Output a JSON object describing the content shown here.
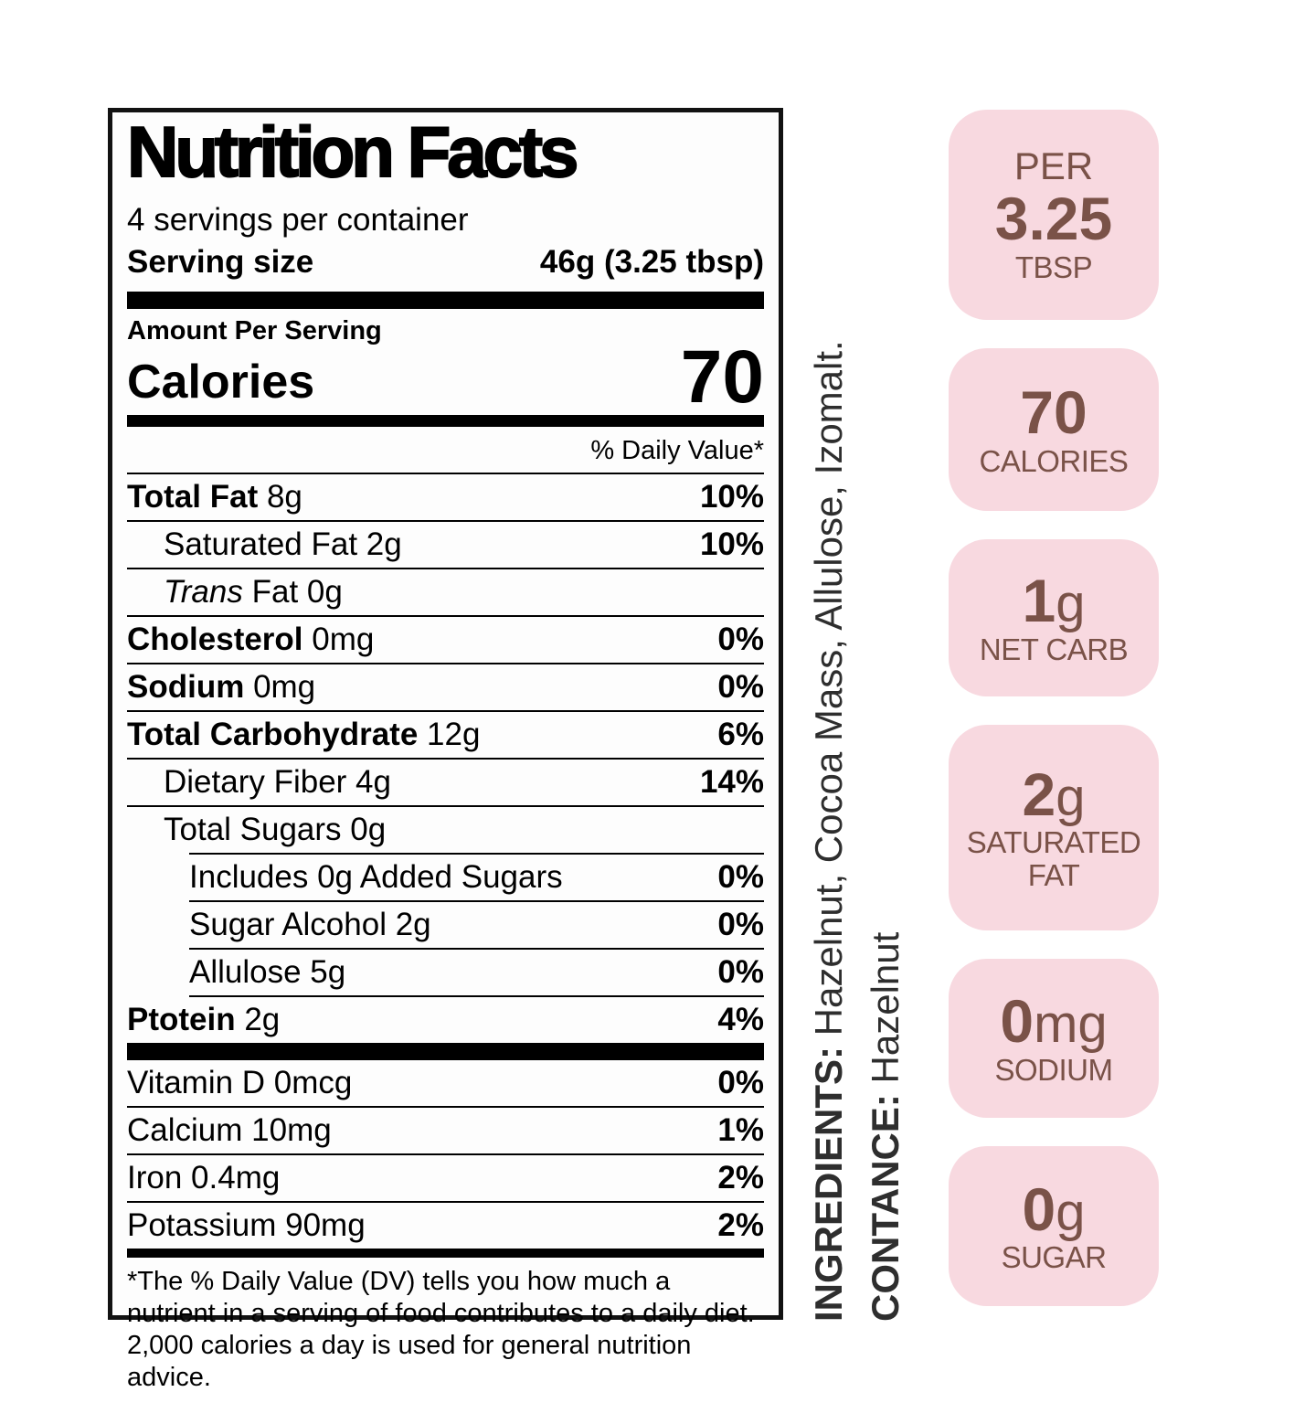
{
  "colors": {
    "badge_bg": "#f8d9e0",
    "badge_text": "#7a5248",
    "label_border": "#121212",
    "label_text": "#000000"
  },
  "nutrition_label": {
    "title": "Nutrition Facts",
    "servings_per_container": "4 servings per container",
    "serving_size_label": "Serving size",
    "serving_size_value": "46g (3.25 tbsp)",
    "amount_per_serving": "Amount Per Serving",
    "calories_label": "Calories",
    "calories_value": "70",
    "daily_value_header": "% Daily Value*",
    "main_rows": [
      {
        "bold": "Total Fat",
        "text": "8g",
        "percent": "10%",
        "indent": 0
      },
      {
        "text": "Saturated Fat 2g",
        "percent": "10%",
        "indent": 1
      },
      {
        "italic": "Trans",
        "text": "Fat 0g",
        "percent": "",
        "indent": 1
      },
      {
        "bold": "Cholesterol",
        "text": "0mg",
        "percent": "0%",
        "indent": 0
      },
      {
        "bold": "Sodium",
        "text": "0mg",
        "percent": "0%",
        "indent": 0
      },
      {
        "bold": "Total Carbohydrate",
        "text": "12g",
        "percent": "6%",
        "indent": 0
      },
      {
        "text": "Dietary Fiber 4g",
        "percent": "14%",
        "indent": 1
      },
      {
        "text": "Total Sugars 0g",
        "percent": "",
        "indent": 1
      },
      {
        "text": "Includes 0g Added Sugars",
        "percent": "0%",
        "indent": 2
      },
      {
        "text": "Sugar Alcohol 2g",
        "percent": "0%",
        "indent": 2
      },
      {
        "text": "Allulose 5g",
        "percent": "0%",
        "indent": 2
      },
      {
        "bold": "Ptotein",
        "text": "2g",
        "percent": "4%",
        "indent": 0
      }
    ],
    "micro_rows": [
      {
        "text": "Vitamin D 0mcg",
        "percent": "0%",
        "indent": 0
      },
      {
        "text": "Calcium 10mg",
        "percent": "1%",
        "indent": 0
      },
      {
        "text": "Iron 0.4mg",
        "percent": "2%",
        "indent": 0
      },
      {
        "text": "Potassium 90mg",
        "percent": "2%",
        "indent": 0
      }
    ],
    "footnote": "*The % Daily Value (DV) tells you how much a nutrient in a serving of food contributes to a daily diet. 2,000 calories a day is used for general nutrition advice."
  },
  "ingredients_sidebar": {
    "ingredients_label": "INGREDIENTS:",
    "ingredients_value": "Hazelnut, Cocoa Mass, Allulose, Izomalt.",
    "contance_label": "CONTANCE:",
    "contance_value": "Hazelnut"
  },
  "badges": [
    {
      "top": "PER",
      "value": "3.25",
      "unit": "",
      "caption": "TBSP"
    },
    {
      "top": "",
      "value": "70",
      "unit": "",
      "caption": "CALORIES"
    },
    {
      "top": "",
      "value": "1",
      "unit": "g",
      "caption": "NET CARB"
    },
    {
      "top": "",
      "value": "2",
      "unit": "g",
      "caption": "SATURATED FAT"
    },
    {
      "top": "",
      "value": "0",
      "unit": "mg",
      "caption": "SODIUM"
    },
    {
      "top": "",
      "value": "0",
      "unit": "g",
      "caption": "SUGAR"
    }
  ]
}
